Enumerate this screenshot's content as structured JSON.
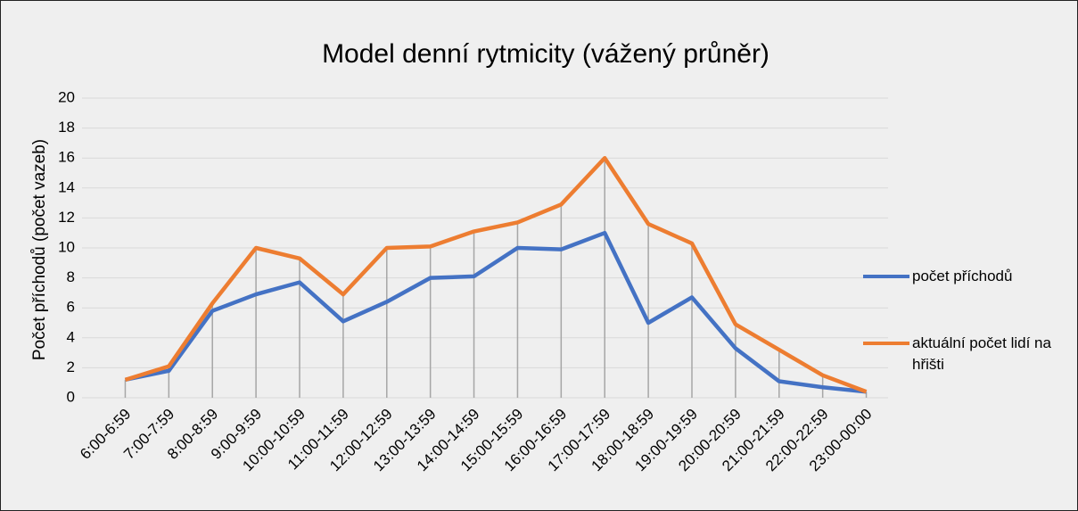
{
  "chart_data": {
    "type": "line",
    "title": "Model denní rytmicity (vážený průněr)",
    "y_label": "Počet příchodů (počet vazeb)",
    "categories": [
      "6:00-6:59",
      "7:00-7:59",
      "8:00-8:59",
      "9:00-9:59",
      "10:00-10:59",
      "11:00-11:59",
      "12:00-12:59",
      "13:00-13:59",
      "14:00-14:59",
      "15:00-15:59",
      "16:00-16:59",
      "17:00-17:59",
      "18:00-18:59",
      "19:00-19:59",
      "20:00-20:59",
      "21:00-21:59",
      "22:00-22:59",
      "23:00-00:00"
    ],
    "series": [
      {
        "name": "počet příchodů",
        "color": "#4472c4",
        "values": [
          1.2,
          1.8,
          5.8,
          6.9,
          7.7,
          5.1,
          6.4,
          8.0,
          8.1,
          10.0,
          9.9,
          11.0,
          5.0,
          6.7,
          3.3,
          1.1,
          0.7,
          0.4
        ]
      },
      {
        "name": "aktuální počet lidí na hřišti",
        "color": "#ed7d31",
        "values": [
          1.2,
          2.1,
          6.3,
          10.0,
          9.3,
          6.9,
          10.0,
          10.1,
          11.1,
          11.7,
          12.9,
          16.0,
          11.6,
          10.3,
          4.9,
          3.2,
          1.5,
          0.4
        ]
      }
    ],
    "ylim": [
      0,
      20
    ],
    "yticks": [
      0,
      2,
      4,
      6,
      8,
      10,
      12,
      14,
      16,
      18,
      20
    ],
    "grid": true,
    "drop_lines": true,
    "legend": "right"
  }
}
